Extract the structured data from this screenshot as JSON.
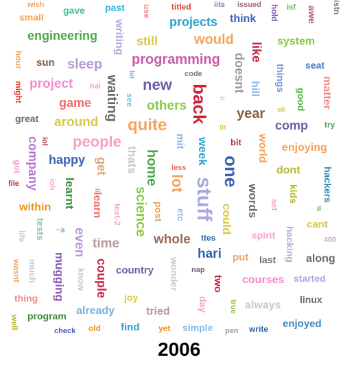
{
  "year": "2006",
  "words": [
    {
      "t": "wish",
      "c": "#f4a45a"
    },
    {
      "t": "gave",
      "c": "#3fbf9f"
    },
    {
      "t": "past",
      "c": "#35b5d8"
    },
    {
      "t": "use",
      "c": "#f08a8a"
    },
    {
      "t": "titled",
      "c": "#e03a2e"
    },
    {
      "t": "iits",
      "c": "#7a7fb8"
    },
    {
      "t": "issued",
      "c": "#a86a7a"
    },
    {
      "t": "hold",
      "c": "#8a58b4"
    },
    {
      "t": "isf",
      "c": "#5ab04a"
    },
    {
      "t": "awe",
      "c": "#c64a8a"
    },
    {
      "t": "istn",
      "c": "#7a7a7a"
    },
    {
      "t": "small",
      "c": "#f4a45a"
    },
    {
      "t": "writing",
      "c": "#a8a8e0"
    },
    {
      "t": "projects",
      "c": "#2aa2c8"
    },
    {
      "t": "think",
      "c": "#3a62b4"
    },
    {
      "t": "engineering",
      "c": "#4aa84a"
    },
    {
      "t": "still",
      "c": "#d8c84a"
    },
    {
      "t": "would",
      "c": "#f4a45a"
    },
    {
      "t": "system",
      "c": "#8ac84a"
    },
    {
      "t": "sun",
      "c": "#8a5a3a"
    },
    {
      "t": "sleep",
      "c": "#b898d8"
    },
    {
      "t": "programming",
      "c": "#c858a8"
    },
    {
      "t": "like",
      "c": "#c02a4a"
    },
    {
      "t": "doesnt",
      "c": "#9a9a9a"
    },
    {
      "t": "things",
      "c": "#7a9ad8"
    },
    {
      "t": "seat",
      "c": "#3a78c8"
    },
    {
      "t": "hour",
      "c": "#f4a45a"
    },
    {
      "t": "code",
      "c": "#7a7a7a"
    },
    {
      "t": "project",
      "c": "#f48ad0"
    },
    {
      "t": "new",
      "c": "#6a5aa8"
    },
    {
      "t": "bit",
      "c": "#7ab0d8"
    },
    {
      "t": "matter",
      "c": "#f08a8a"
    },
    {
      "t": "might",
      "c": "#e03a2e"
    },
    {
      "t": "hai",
      "c": "#f4a0c8"
    },
    {
      "t": "game",
      "c": "#f06a6a"
    },
    {
      "t": "waiting",
      "c": "#6a6a6a"
    },
    {
      "t": "see",
      "c": "#6ac8d8"
    },
    {
      "t": "back",
      "c": "#d0203a"
    },
    {
      "t": "ii",
      "c": "#b8b8e0"
    },
    {
      "t": "hill",
      "c": "#8ab8e8"
    },
    {
      "t": "good",
      "c": "#5ab04a"
    },
    {
      "t": "great",
      "c": "#6a6a6a"
    },
    {
      "t": "around",
      "c": "#d8c84a"
    },
    {
      "t": "others",
      "c": "#8ac84a"
    },
    {
      "t": "year",
      "c": "#8a5a3a"
    },
    {
      "t": "sit",
      "c": "#d8c84a"
    },
    {
      "t": "quite",
      "c": "#f4a45a"
    },
    {
      "t": "tit",
      "c": "#d8c84a"
    },
    {
      "t": "comp",
      "c": "#6a5aa8"
    },
    {
      "t": "try",
      "c": "#4aa84a"
    },
    {
      "t": "company",
      "c": "#b078d0"
    },
    {
      "t": "people",
      "c": "#f4a0c8"
    },
    {
      "t": "iol",
      "c": "#c02a4a"
    },
    {
      "t": "thats",
      "c": "#c8c8c8"
    },
    {
      "t": "mit",
      "c": "#8ab8e8"
    },
    {
      "t": "week",
      "c": "#2aa2c8"
    },
    {
      "t": "bit",
      "c": "#c02a4a"
    },
    {
      "t": "world",
      "c": "#f4a45a"
    },
    {
      "t": "enjoying",
      "c": "#f4a45a"
    },
    {
      "t": "got",
      "c": "#f4a0c8"
    },
    {
      "t": "happy",
      "c": "#3a62b4"
    },
    {
      "t": "get",
      "c": "#d8a87a"
    },
    {
      "t": "home",
      "c": "#4aa84a"
    },
    {
      "t": "less",
      "c": "#f06a6a"
    },
    {
      "t": "one",
      "c": "#3a62b4"
    },
    {
      "t": "dont",
      "c": "#b8b82a"
    },
    {
      "t": "hackers",
      "c": "#2a8ab8"
    },
    {
      "t": "file",
      "c": "#c02a4a"
    },
    {
      "t": "ioh",
      "c": "#f4a0c8"
    },
    {
      "t": "learnt",
      "c": "#3a8a3a"
    },
    {
      "t": "ii",
      "c": "#f08a8a"
    },
    {
      "t": "lot",
      "c": "#f4a45a"
    },
    {
      "t": "stuff",
      "c": "#a8a8e0"
    },
    {
      "t": "words",
      "c": "#6a6a6a"
    },
    {
      "t": "kids",
      "c": "#b8b82a"
    },
    {
      "t": "within",
      "c": "#f0901a"
    },
    {
      "t": "learn",
      "c": "#f06a6a"
    },
    {
      "t": "test-2",
      "c": "#f4a0c8"
    },
    {
      "t": "science",
      "c": "#8ac84a"
    },
    {
      "t": "post",
      "c": "#f4a45a"
    },
    {
      "t": "could",
      "c": "#d8c84a"
    },
    {
      "t": "set",
      "c": "#f4a0c8"
    },
    {
      "t": "il",
      "c": "#5ab04a"
    },
    {
      "t": "cant",
      "c": "#d8c84a"
    },
    {
      "t": "tests",
      "c": "#8ac8a8"
    },
    {
      "t": "~a",
      "c": "#7ab0d8"
    },
    {
      "t": "even",
      "c": "#b898d8"
    },
    {
      "t": "ttes",
      "c": "#2a62a8"
    },
    {
      "t": "etc",
      "c": "#8ab8e8"
    },
    {
      "t": "spirit",
      "c": "#f4a0c8"
    },
    {
      "t": "hacking",
      "c": "#b8a8d8"
    },
    {
      "t": "life",
      "c": "#c8c8c8"
    },
    {
      "t": "time",
      "c": "#b89898"
    },
    {
      "t": "whole",
      "c": "#9a6a5a"
    },
    {
      "t": "hari",
      "c": "#2a62a8"
    },
    {
      "t": "400",
      "c": "#c8a8d8"
    },
    {
      "t": "mugging",
      "c": "#8a58b4"
    },
    {
      "t": "put",
      "c": "#f4a45a"
    },
    {
      "t": "last",
      "c": "#6a6a6a"
    },
    {
      "t": "along",
      "c": "#6a6a6a"
    },
    {
      "t": "wasnt",
      "c": "#f4a45a"
    },
    {
      "t": "much",
      "c": "#c8c8c8"
    },
    {
      "t": "know",
      "c": "#c8c8c8"
    },
    {
      "t": "couple",
      "c": "#c02a4a"
    },
    {
      "t": "country",
      "c": "#6a5aa8"
    },
    {
      "t": "wonder",
      "c": "#c8c8c8"
    },
    {
      "t": "nap",
      "c": "#6a6a6a"
    },
    {
      "t": "two",
      "c": "#d0203a"
    },
    {
      "t": "courses",
      "c": "#f08ac8"
    },
    {
      "t": "started",
      "c": "#a8a8e0"
    },
    {
      "t": "thing",
      "c": "#f08a8a"
    },
    {
      "t": "joy",
      "c": "#d8c84a"
    },
    {
      "t": "day",
      "c": "#f4a0c8"
    },
    {
      "t": "true",
      "c": "#8ac84a"
    },
    {
      "t": "always",
      "c": "#c8c8c8"
    },
    {
      "t": "linux",
      "c": "#6a6a6a"
    },
    {
      "t": "already",
      "c": "#7ab0d8"
    },
    {
      "t": "tried",
      "c": "#b89898"
    },
    {
      "t": "well",
      "c": "#b8b82a"
    },
    {
      "t": "program",
      "c": "#3a8a3a"
    },
    {
      "t": "find",
      "c": "#2aa2c8"
    },
    {
      "t": "simple",
      "c": "#8ab8e8"
    },
    {
      "t": "enjoyed",
      "c": "#3a8ab8"
    },
    {
      "t": "old",
      "c": "#f0901a"
    },
    {
      "t": "yet",
      "c": "#f0901a"
    },
    {
      "t": "check",
      "c": "#3a62b4"
    },
    {
      "t": "pen",
      "c": "#9a9a9a"
    },
    {
      "t": "write",
      "c": "#2a62a8"
    }
  ]
}
